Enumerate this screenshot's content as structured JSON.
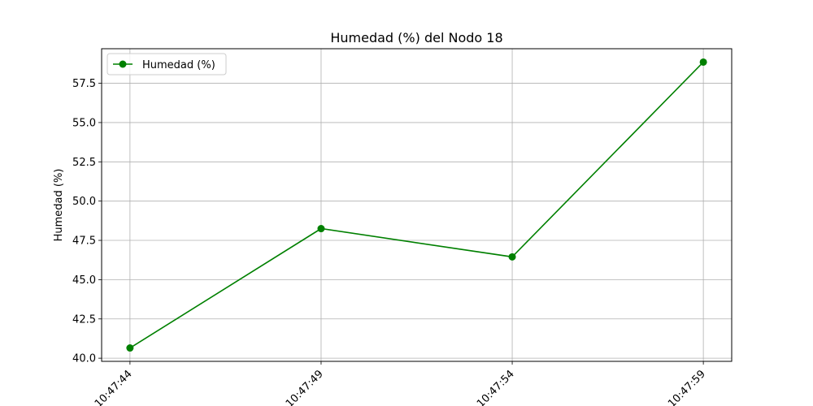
{
  "chart_data": {
    "type": "line",
    "title": "Humedad (%) del Nodo 18",
    "xlabel": "",
    "ylabel": "Humedad (%)",
    "x": [
      "10:47:44",
      "10:47:49",
      "10:47:54",
      "10:47:59"
    ],
    "ylim": [
      39.8,
      59.7
    ],
    "yticks": [
      "40.0",
      "42.5",
      "45.0",
      "47.5",
      "50.0",
      "52.5",
      "55.0",
      "57.5"
    ],
    "grid": true,
    "legend_position": "top-left",
    "series": [
      {
        "name": "Humedad (%)",
        "color": "#008000",
        "marker": "circle",
        "values": [
          40.65,
          48.25,
          46.45,
          58.85
        ]
      }
    ]
  }
}
